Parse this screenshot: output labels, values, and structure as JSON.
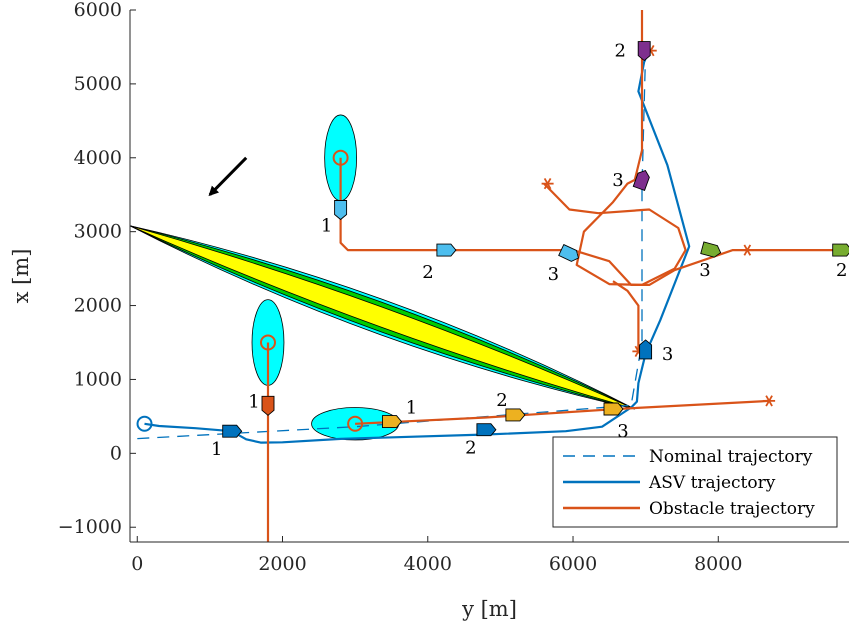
{
  "chart_data": {
    "type": "line",
    "title": "",
    "xlabel": "y [m]",
    "ylabel": "x [m]",
    "xlim": [
      -100,
      9800
    ],
    "ylim": [
      -1200,
      6000
    ],
    "xticks": [
      0,
      2000,
      4000,
      6000,
      8000
    ],
    "yticks": [
      -1000,
      0,
      1000,
      2000,
      3000,
      4000,
      5000,
      6000
    ],
    "xtick_labels": [
      "0",
      "2000",
      "4000",
      "6000",
      "8000"
    ],
    "ytick_labels": [
      "−1000",
      "0",
      "1000",
      "2000",
      "3000",
      "4000",
      "5000",
      "6000"
    ],
    "grid": false,
    "legend_position": "bottom-right",
    "colors": {
      "nominal": "#0072BD",
      "asv": "#0072BD",
      "obstacle": "#D95319",
      "cyan_region": "#00FFFF",
      "zone_outer": "#00FFFF",
      "zone_mid": "#00CC00",
      "zone_inner": "#FFFF00"
    },
    "series": [
      {
        "name": "Nominal trajectory",
        "style": "dashed",
        "points": [
          [
            0,
            200
          ],
          [
            3000,
            360
          ],
          [
            6800,
            650
          ],
          [
            6950,
            1500
          ],
          [
            6950,
            3600
          ],
          [
            7000,
            5450
          ]
        ]
      },
      {
        "name": "ASV trajectory",
        "style": "solid",
        "points": [
          [
            100,
            400
          ],
          [
            300,
            370
          ],
          [
            800,
            340
          ],
          [
            1300,
            300
          ],
          [
            1500,
            190
          ],
          [
            1700,
            145
          ],
          [
            2000,
            150
          ],
          [
            2800,
            195
          ],
          [
            4800,
            255
          ],
          [
            5900,
            300
          ],
          [
            6400,
            360
          ],
          [
            6800,
            620
          ],
          [
            6880,
            700
          ],
          [
            6900,
            950
          ],
          [
            7000,
            1350
          ],
          [
            7200,
            1800
          ],
          [
            7400,
            2300
          ],
          [
            7600,
            2800
          ],
          [
            7300,
            3900
          ],
          [
            6900,
            4900
          ],
          [
            6980,
            5300
          ],
          [
            7050,
            5450
          ]
        ]
      },
      {
        "name": "Obstacle trajectory",
        "style": "solid",
        "points": [
          [
            3000,
            400
          ],
          [
            4800,
            485
          ],
          [
            6600,
            600
          ],
          [
            8700,
            710
          ]
        ]
      },
      {
        "name": "",
        "style": "solid",
        "points": [
          [
            1800,
            -1200
          ],
          [
            1800,
            1500
          ]
        ]
      },
      {
        "name": "",
        "style": "solid",
        "points": [
          [
            2800,
            4000
          ],
          [
            2800,
            2850
          ],
          [
            2900,
            2750
          ],
          [
            6000,
            2750
          ],
          [
            6500,
            2600
          ],
          [
            6800,
            2280
          ],
          [
            7050,
            2280
          ],
          [
            7400,
            2480
          ],
          [
            8200,
            2750
          ],
          [
            9800,
            2750
          ]
        ]
      },
      {
        "name": "",
        "style": "solid",
        "points": [
          [
            5600,
            3650
          ],
          [
            5950,
            3300
          ],
          [
            6350,
            3250
          ],
          [
            7050,
            3300
          ],
          [
            7450,
            3050
          ],
          [
            7550,
            2750
          ],
          [
            7400,
            2500
          ],
          [
            6950,
            2280
          ],
          [
            6500,
            2290
          ],
          [
            6050,
            2550
          ],
          [
            6150,
            3000
          ],
          [
            6550,
            3400
          ],
          [
            6750,
            3650
          ],
          [
            6850,
            3700
          ],
          [
            6950,
            4100
          ],
          [
            6950,
            6000
          ]
        ]
      },
      {
        "name": "",
        "style": "solid",
        "points": [
          [
            6900,
            1380
          ],
          [
            6900,
            2000
          ],
          [
            6750,
            2200
          ],
          [
            6550,
            2330
          ]
        ]
      }
    ],
    "star_markers": [
      [
        5650,
        3650
      ],
      [
        8400,
        2750
      ],
      [
        8700,
        710
      ],
      [
        6900,
        1380
      ],
      [
        7070,
        5450
      ]
    ],
    "circle_markers": [
      [
        100,
        400
      ],
      [
        3000,
        400
      ],
      [
        1800,
        1500
      ],
      [
        2800,
        4000
      ]
    ],
    "ellipses": [
      {
        "cx": 2800,
        "cy": 4000,
        "rx": 220,
        "ry": 580
      },
      {
        "cx": 1800,
        "cy": 1500,
        "rx": 220,
        "ry": 580
      },
      {
        "cx": 3000,
        "cy": 400,
        "rx": 600,
        "ry": 220
      }
    ],
    "danger_zone": {
      "p1": [
        -100,
        3080
      ],
      "p2": [
        6850,
        600
      ],
      "half_widths": [
        230,
        190,
        130
      ]
    },
    "arrow": {
      "from": [
        1500,
        4000
      ],
      "to": [
        1000,
        3500
      ]
    },
    "vessels": [
      {
        "x": 1300,
        "y": 300,
        "dir": 0,
        "color": "#0072BD",
        "label": "1",
        "lx": -15,
        "ly": 24
      },
      {
        "x": 4800,
        "y": 320,
        "dir": 0,
        "color": "#0072BD",
        "label": "2",
        "lx": -15,
        "ly": 24
      },
      {
        "x": 7000,
        "y": 1400,
        "dir": 90,
        "color": "#0072BD",
        "label": "3",
        "lx": 22,
        "ly": 10
      },
      {
        "x": 3500,
        "y": 430,
        "dir": 0,
        "color": "#EDB120",
        "label": "1",
        "lx": 20,
        "ly": -8
      },
      {
        "x": 5200,
        "y": 520,
        "dir": 0,
        "color": "#EDB120",
        "label": "2",
        "lx": -13,
        "ly": -9
      },
      {
        "x": 6550,
        "y": 600,
        "dir": 0,
        "color": "#EDB120",
        "label": "3",
        "lx": 10,
        "ly": 28
      },
      {
        "x": 1800,
        "y": 650,
        "dir": -90,
        "color": "#D95319",
        "label": "1",
        "lx": -14,
        "ly": 2
      },
      {
        "x": 2800,
        "y": 3300,
        "dir": -90,
        "color": "#4DBEEE",
        "label": "1",
        "lx": -14,
        "ly": 22
      },
      {
        "x": 4250,
        "y": 2750,
        "dir": 0,
        "color": "#4DBEEE",
        "label": "2",
        "lx": -18,
        "ly": 28
      },
      {
        "x": 5950,
        "y": 2700,
        "dir": -25,
        "color": "#4DBEEE",
        "label": "3",
        "lx": -16,
        "ly": 26
      },
      {
        "x": 6950,
        "y": 3700,
        "dir": 70,
        "color": "#7E2F8E",
        "label": "3",
        "lx": -24,
        "ly": 6
      },
      {
        "x": 6980,
        "y": 5450,
        "dir": -90,
        "color": "#7E2F8E",
        "label": "2",
        "lx": -24,
        "ly": 6
      },
      {
        "x": 7900,
        "y": 2750,
        "dir": -15,
        "color": "#77AC30",
        "label": "3",
        "lx": -6,
        "ly": 26
      },
      {
        "x": 9700,
        "y": 2750,
        "dir": 0,
        "color": "#77AC30",
        "label": "2",
        "lx": 0,
        "ly": 26
      }
    ]
  }
}
